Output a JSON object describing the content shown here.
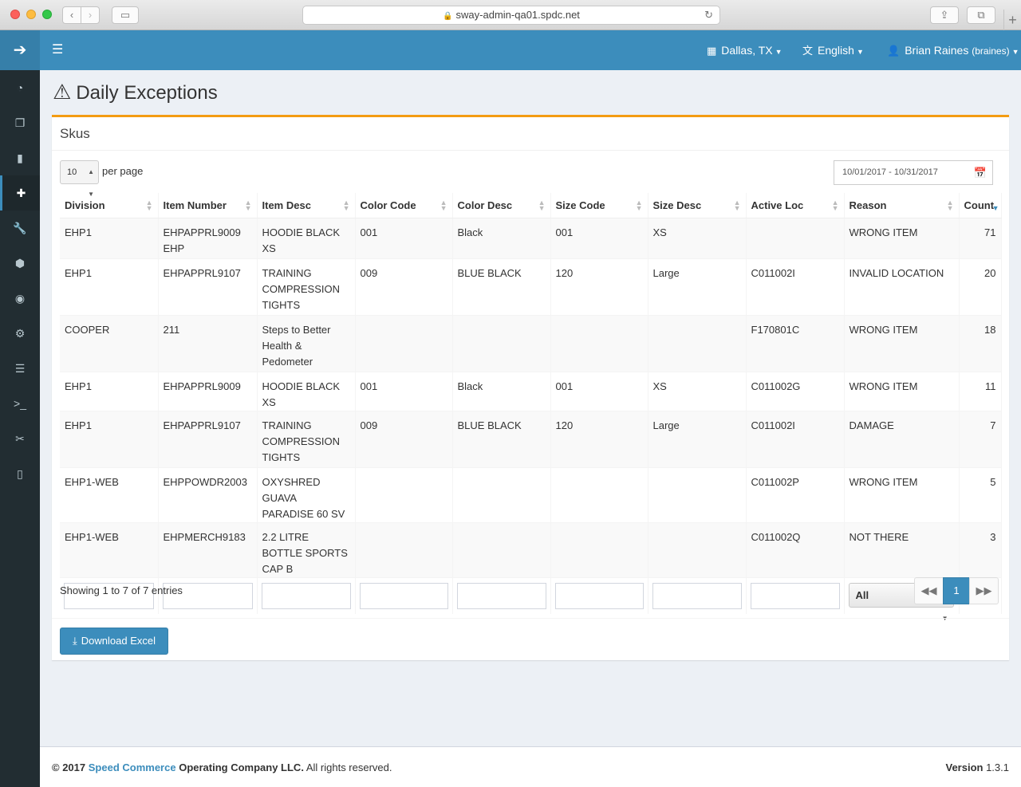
{
  "browser": {
    "url": "sway-admin-qa01.spdc.net"
  },
  "navbar": {
    "location": "Dallas, TX",
    "language": "English",
    "user_name": "Brian Raines",
    "user_handle": "(braines)"
  },
  "page": {
    "title": "Daily Exceptions"
  },
  "box": {
    "title": "Skus",
    "per_page_value": "10",
    "per_page_label": "per page",
    "date_range": "10/01/2017 - 10/31/2017"
  },
  "table": {
    "columns": [
      "Division",
      "Item Number",
      "Item Desc",
      "Color Code",
      "Color Desc",
      "Size Code",
      "Size Desc",
      "Active Loc",
      "Reason",
      "Count"
    ],
    "rows": [
      [
        "EHP1",
        "EHPAPPRL9009 EHP",
        "HOODIE BLACK XS",
        "001",
        "Black",
        "001",
        "XS",
        "",
        "WRONG ITEM",
        "71"
      ],
      [
        "EHP1",
        "EHPAPPRL9107",
        "TRAINING COMPRESSION TIGHTS",
        "009",
        "BLUE BLACK",
        "120",
        "Large",
        "C011002I",
        "INVALID LOCATION",
        "20"
      ],
      [
        "COOPER",
        "211",
        "Steps to Better Health & Pedometer",
        "",
        "",
        "",
        "",
        "F170801C",
        "WRONG ITEM",
        "18"
      ],
      [
        "EHP1",
        "EHPAPPRL9009",
        "HOODIE BLACK XS",
        "001",
        "Black",
        "001",
        "XS",
        "C011002G",
        "WRONG ITEM",
        "11"
      ],
      [
        "EHP1",
        "EHPAPPRL9107",
        "TRAINING COMPRESSION TIGHTS",
        "009",
        "BLUE BLACK",
        "120",
        "Large",
        "C011002I",
        "DAMAGE",
        "7"
      ],
      [
        "EHP1-WEB",
        "EHPPOWDR2003",
        "OXYSHRED GUAVA PARADISE 60 SV",
        "",
        "",
        "",
        "",
        "C011002P",
        "WRONG ITEM",
        "5"
      ],
      [
        "EHP1-WEB",
        "EHPMERCH9183",
        "2.2 LITRE BOTTLE SPORTS CAP B",
        "",
        "",
        "",
        "",
        "C011002Q",
        "NOT THERE",
        "3"
      ]
    ],
    "reason_filter": "All"
  },
  "pagination": {
    "info": "Showing 1 to 7 of 7 entries",
    "current_page": "1"
  },
  "actions": {
    "download_label": "Download Excel"
  },
  "footer": {
    "copyright": "© 2017",
    "company": "Speed Commerce",
    "company_rest": "Operating Company LLC.",
    "rights": "All rights reserved.",
    "version_label": "Version",
    "version": "1.3.1"
  },
  "icons": {
    "sidebar": [
      "dashboard-icon",
      "copy-icon",
      "file-icon",
      "medkit-icon",
      "wrench-icon",
      "cube-icon",
      "user-circle-icon",
      "cogs-icon",
      "list-icon",
      "terminal-icon",
      "tools-icon",
      "battery-icon"
    ]
  }
}
